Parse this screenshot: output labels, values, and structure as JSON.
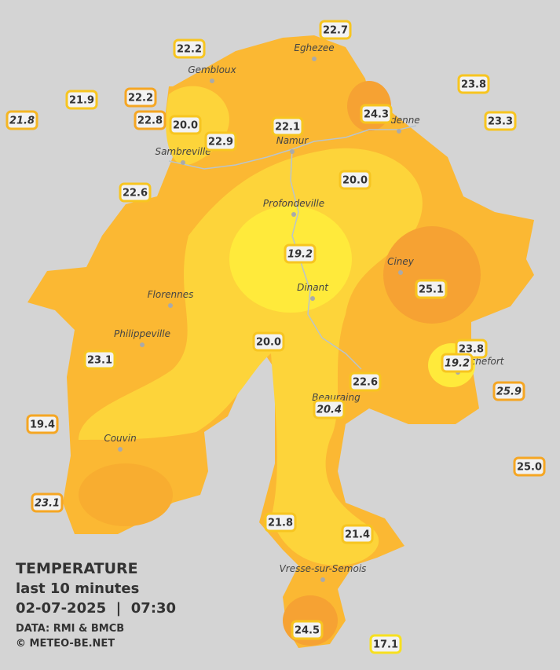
{
  "map": {
    "towns": [
      "Eghezee",
      "Gembloux",
      "Andenne",
      "Namur",
      "Sambreville",
      "Profondeville",
      "Ciney",
      "Dinant",
      "Florennes",
      "Philippeville",
      "Rochefort",
      "Beauraing",
      "Couvin",
      "Vresse-sur-Semois"
    ],
    "stations": [
      {
        "label": "22.7",
        "border": "#f7c520",
        "italic": false
      },
      {
        "label": "22.2",
        "border": "#f7c520",
        "italic": false
      },
      {
        "label": "23.8",
        "border": "#f7c520",
        "italic": false
      },
      {
        "label": "21.9",
        "border": "#f7c520",
        "italic": false
      },
      {
        "label": "22.2",
        "border": "#f5a623",
        "italic": false
      },
      {
        "label": "24.3",
        "border": "#f7c520",
        "italic": false
      },
      {
        "label": "21.8",
        "border": "#f5b623",
        "italic": true
      },
      {
        "label": "22.8",
        "border": "#f5a623",
        "italic": false
      },
      {
        "label": "20.0",
        "border": "#f7c520",
        "italic": false
      },
      {
        "label": "22.1",
        "border": "#f7c520",
        "italic": false
      },
      {
        "label": "23.3",
        "border": "#f7c520",
        "italic": false
      },
      {
        "label": "22.9",
        "border": "#f7c520",
        "italic": false
      },
      {
        "label": "20.0",
        "border": "#f7c520",
        "italic": false
      },
      {
        "label": "22.6",
        "border": "#f7c520",
        "italic": false
      },
      {
        "label": "19.2",
        "border": "#f7c520",
        "italic": true
      },
      {
        "label": "25.1",
        "border": "#f7c520",
        "italic": false
      },
      {
        "label": "20.0",
        "border": "#f7c520",
        "italic": false
      },
      {
        "label": "23.8",
        "border": "#f7c520",
        "italic": false
      },
      {
        "label": "23.1",
        "border": "#f7c520",
        "italic": false
      },
      {
        "label": "19.2",
        "border": "#f7c520",
        "italic": true
      },
      {
        "label": "22.6",
        "border": "#f7c520",
        "italic": false
      },
      {
        "label": "25.9",
        "border": "#f5a623",
        "italic": true
      },
      {
        "label": "20.4",
        "border": "#f7c520",
        "italic": true
      },
      {
        "label": "19.4",
        "border": "#f5a623",
        "italic": false
      },
      {
        "label": "25.0",
        "border": "#f5a623",
        "italic": false
      },
      {
        "label": "23.1",
        "border": "#f5a623",
        "italic": true
      },
      {
        "label": "21.8",
        "border": "#f7c520",
        "italic": false
      },
      {
        "label": "21.4",
        "border": "#f7c520",
        "italic": false
      },
      {
        "label": "24.5",
        "border": "#f7c520",
        "italic": false
      },
      {
        "label": "17.1",
        "border": "#f7e020",
        "italic": false
      }
    ],
    "legend": {
      "title": "TEMPERATURE",
      "period": "last 10 minutes",
      "datetime": "02-07-2025  |  07:30",
      "source": "DATA: RMI & BMCB",
      "copyright": "© METEO-BE.NET"
    }
  }
}
